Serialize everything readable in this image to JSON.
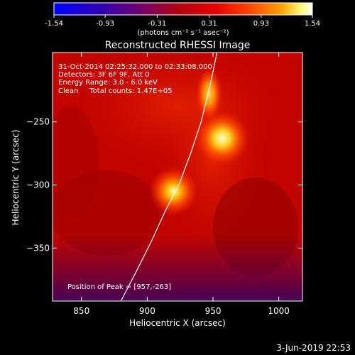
{
  "colorbar": {
    "ticks": [
      "-1.54",
      "-0.93",
      "-0.31",
      "0.31",
      "0.93",
      "1.54"
    ],
    "values": [
      -1.54,
      -0.93,
      -0.31,
      0.31,
      0.93,
      1.54
    ],
    "units": "(photons cm⁻² s⁻¹ asec⁻²)"
  },
  "chart_data": {
    "type": "heatmap",
    "title": "Reconstructed RHESSI Image",
    "xlabel": "Heliocentric X (arcsec)",
    "ylabel": "Heliocentric Y (arcsec)",
    "xlim": [
      828,
      1018
    ],
    "ylim": [
      -392,
      -195
    ],
    "xticks": [
      850,
      900,
      950,
      1000
    ],
    "yticks": [
      -250,
      -300,
      -350
    ],
    "xtick_labels": [
      "850",
      "900",
      "950",
      "1000"
    ],
    "ytick_labels": [
      "−250",
      "−300",
      "−350"
    ],
    "colorscale": [
      "#0000ff",
      "#400080",
      "#800030",
      "#cc0000",
      "#ff3000",
      "#ff9000",
      "#ffff80",
      "#ffffff"
    ],
    "sources": [
      {
        "x": 957,
        "y": -263,
        "peak": 1.54
      },
      {
        "x": 920,
        "y": -305,
        "peak": 1.35
      },
      {
        "x": 947,
        "y": -228,
        "peak": 1.05
      }
    ],
    "limb_curve_x": [
      953,
      948,
      941,
      933,
      924,
      914,
      903,
      891,
      880
    ],
    "limb_curve_y": [
      -195,
      -220,
      -250,
      -275,
      -300,
      -320,
      -345,
      -370,
      -392
    ]
  },
  "annotations": [
    "31-Oct-2014 02:25:32.000 to 02:33:08.000",
    "Detectors: 3F 6F 9F, Att 0",
    "Energy Range: 3.0 - 6.0 keV",
    "Clean     Total counts: 1.47E+05"
  ],
  "peak_label": "Position of Peak = [957,-263]",
  "footer_date": "3-Jun-2019 22:53"
}
